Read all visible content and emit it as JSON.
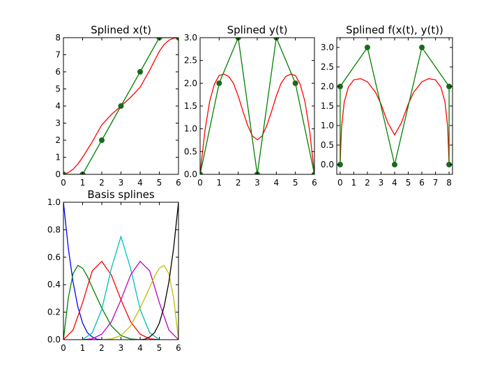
{
  "chart_data": [
    {
      "type": "line",
      "title": "Splined x(t)",
      "xlim": [
        0,
        6
      ],
      "ylim": [
        0,
        8
      ],
      "xticks": [
        "0",
        "1",
        "2",
        "3",
        "4",
        "5",
        "6"
      ],
      "yticks": [
        "0",
        "1",
        "2",
        "3",
        "4",
        "5",
        "6",
        "7",
        "8"
      ],
      "series": [
        {
          "color": "#ff0000",
          "x": [
            0,
            0.25,
            0.5,
            0.75,
            1,
            1.5,
            2,
            2.5,
            3,
            3.5,
            4,
            4.5,
            5,
            5.25,
            5.5,
            5.75,
            6
          ],
          "y": [
            0,
            0.1,
            0.3,
            0.6,
            1.0,
            1.9,
            2.9,
            3.5,
            4.0,
            4.5,
            5.1,
            6.1,
            7.2,
            7.6,
            7.85,
            7.97,
            8
          ]
        },
        {
          "color": "#008000",
          "markers": true,
          "x": [
            0,
            1,
            2,
            3,
            4,
            5,
            6
          ],
          "y": [
            0,
            0,
            2,
            4,
            6,
            8,
            8
          ]
        }
      ]
    },
    {
      "type": "line",
      "title": "Splined y(t)",
      "xlim": [
        0,
        6
      ],
      "ylim": [
        0,
        3
      ],
      "xticks": [
        "0",
        "1",
        "2",
        "3",
        "4",
        "5",
        "6"
      ],
      "yticks": [
        "0.0",
        "0.5",
        "1.0",
        "1.5",
        "2.0",
        "2.5",
        "3.0"
      ],
      "series": [
        {
          "color": "#ff0000",
          "x": [
            0,
            0.25,
            0.5,
            0.75,
            1,
            1.25,
            1.5,
            1.75,
            2,
            2.25,
            2.5,
            2.75,
            3,
            3.25,
            3.5,
            3.75,
            4,
            4.25,
            4.5,
            4.75,
            5,
            5.25,
            5.5,
            5.75,
            6
          ],
          "y": [
            0,
            0.95,
            1.6,
            1.98,
            2.17,
            2.2,
            2.15,
            2.0,
            1.72,
            1.38,
            1.07,
            0.84,
            0.76,
            0.84,
            1.07,
            1.38,
            1.72,
            2.0,
            2.15,
            2.2,
            2.17,
            1.98,
            1.6,
            0.95,
            0
          ]
        },
        {
          "color": "#008000",
          "markers": true,
          "x": [
            0,
            1,
            2,
            3,
            4,
            5,
            6
          ],
          "y": [
            0,
            2,
            3,
            0,
            3,
            2,
            0
          ]
        }
      ]
    },
    {
      "type": "line",
      "title": "Splined f(x(t), y(t))",
      "xlim": [
        -0.25,
        8.25
      ],
      "ylim": [
        -0.25,
        3.25
      ],
      "xticks": [
        "0",
        "1",
        "2",
        "3",
        "4",
        "5",
        "6",
        "7",
        "8"
      ],
      "yticks": [
        "0.0",
        "0.5",
        "1.0",
        "1.5",
        "2.0",
        "2.5",
        "3.0"
      ],
      "series": [
        {
          "color": "#ff0000",
          "x": [
            0,
            0.1,
            0.3,
            0.6,
            1.0,
            1.5,
            2.0,
            2.6,
            3.0,
            3.5,
            4.0,
            4.5,
            5.0,
            5.4,
            6.0,
            6.5,
            7.0,
            7.4,
            7.7,
            7.9,
            8.0
          ],
          "y": [
            0,
            0.95,
            1.6,
            1.98,
            2.17,
            2.2,
            2.12,
            1.85,
            1.55,
            1.07,
            0.76,
            1.07,
            1.55,
            1.85,
            2.12,
            2.2,
            2.17,
            1.98,
            1.6,
            0.95,
            0
          ]
        },
        {
          "color": "#008000",
          "markers": true,
          "x": [
            0,
            0,
            2,
            4,
            6,
            8,
            8
          ],
          "y": [
            0,
            2,
            3,
            0,
            3,
            2,
            0
          ]
        }
      ]
    },
    {
      "type": "line",
      "title": "Basis splines",
      "xlim": [
        0,
        6
      ],
      "ylim": [
        0,
        1
      ],
      "xticks": [
        "0",
        "1",
        "2",
        "3",
        "4",
        "5",
        "6"
      ],
      "yticks": [
        "0.0",
        "0.2",
        "0.4",
        "0.6",
        "0.8",
        "1.0"
      ],
      "series": [
        {
          "color": "#0000ff",
          "x": [
            0,
            0.25,
            0.5,
            0.75,
            1,
            1.25,
            1.5,
            1.75,
            2
          ],
          "y": [
            1,
            0.67,
            0.42,
            0.24,
            0.12,
            0.05,
            0.02,
            0.003,
            0
          ]
        },
        {
          "color": "#008000",
          "x": [
            0,
            0.25,
            0.5,
            0.75,
            1,
            1.25,
            1.5,
            2,
            2.5,
            3,
            3.5,
            4
          ],
          "y": [
            0,
            0.3,
            0.48,
            0.54,
            0.52,
            0.46,
            0.38,
            0.23,
            0.1,
            0.03,
            0.005,
            0
          ]
        },
        {
          "color": "#ff0000",
          "x": [
            0,
            0.5,
            1,
            1.5,
            2,
            2.5,
            3,
            3.5,
            4,
            4.5,
            5
          ],
          "y": [
            0,
            0.07,
            0.27,
            0.5,
            0.57,
            0.47,
            0.29,
            0.13,
            0.04,
            0.006,
            0
          ]
        },
        {
          "color": "#00bfbf",
          "x": [
            1,
            1.5,
            2,
            2.5,
            3,
            3.5,
            4,
            4.5,
            5
          ],
          "y": [
            0,
            0.05,
            0.22,
            0.52,
            0.75,
            0.52,
            0.22,
            0.05,
            0
          ]
        },
        {
          "color": "#bf00bf",
          "x": [
            1,
            1.5,
            2,
            2.5,
            3,
            3.5,
            4,
            4.5,
            5,
            5.5,
            6
          ],
          "y": [
            0,
            0.006,
            0.04,
            0.13,
            0.29,
            0.47,
            0.57,
            0.5,
            0.27,
            0.07,
            0
          ]
        },
        {
          "color": "#bfbf00",
          "x": [
            2,
            2.5,
            3,
            3.5,
            4,
            4.5,
            4.75,
            5,
            5.25,
            5.5,
            5.75,
            6
          ],
          "y": [
            0,
            0.005,
            0.03,
            0.1,
            0.23,
            0.38,
            0.46,
            0.52,
            0.54,
            0.48,
            0.3,
            0
          ]
        },
        {
          "color": "#000000",
          "x": [
            4,
            4.25,
            4.5,
            4.75,
            5,
            5.25,
            5.5,
            5.75,
            6
          ],
          "y": [
            0,
            0.003,
            0.02,
            0.05,
            0.12,
            0.24,
            0.42,
            0.67,
            1
          ]
        }
      ]
    }
  ]
}
